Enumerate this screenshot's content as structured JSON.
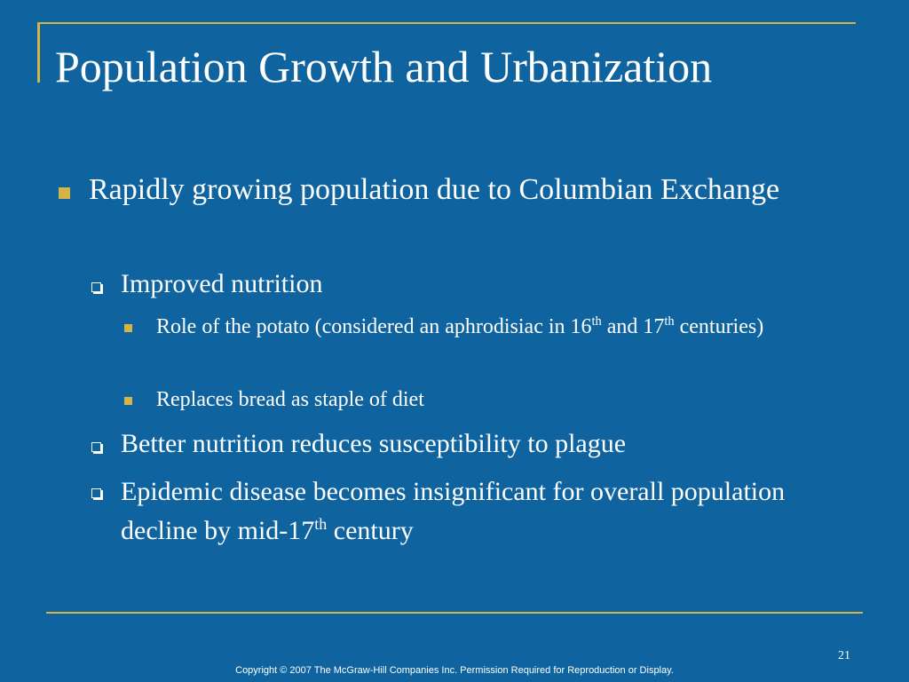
{
  "slide": {
    "title": "Population Growth and Urbanization",
    "bullet1": {
      "text": "Rapidly growing population due to Columbian Exchange"
    },
    "sub1": {
      "text": "Improved nutrition"
    },
    "subsub1": {
      "part1": "Role of the potato (considered an aphrodisiac in 16",
      "sup1": "th",
      "part2": " and 17",
      "sup2": "th",
      "part3": " centuries)"
    },
    "subsub2": {
      "text": "Replaces bread as staple of diet"
    },
    "sub2": {
      "text": "Better nutrition reduces susceptibility to plague"
    },
    "sub3": {
      "part1": "Epidemic disease becomes insignificant for overall population decline by mid-17",
      "sup1": "th",
      "part2": " century"
    }
  },
  "footer": {
    "page_number": "21",
    "copyright": "Copyright © 2007 The McGraw-Hill Companies Inc. Permission Required for Reproduction or Display."
  },
  "colors": {
    "background": "#0f64a0",
    "accent": "#d4b347",
    "text": "#ffffff"
  }
}
